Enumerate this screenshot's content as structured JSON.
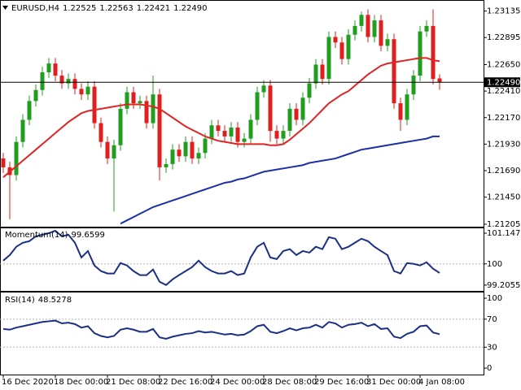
{
  "chart_data": [
    {
      "type": "candlestick",
      "symbol": "EURUSD,H4",
      "last_close_label": "1.22490",
      "categories": [
        "16 Dec 2020",
        null,
        null,
        null,
        null,
        null,
        null,
        null,
        "18 Dec 00:00",
        null,
        null,
        null,
        null,
        null,
        null,
        null,
        "21 Dec 08:00",
        null,
        null,
        null,
        null,
        null,
        null,
        null,
        "22 Dec 16:00",
        null,
        null,
        null,
        null,
        null,
        null,
        null,
        "24 Dec 00:00",
        null,
        null,
        null,
        null,
        null,
        null,
        null,
        "28 Dec 08:00",
        null,
        null,
        null,
        null,
        null,
        null,
        null,
        "29 Dec 16:00",
        null,
        null,
        null,
        null,
        null,
        null,
        null,
        "31 Dec 00:00",
        null,
        null,
        null,
        null,
        null,
        null,
        null,
        "4 Jan 08:00",
        null,
        null,
        null
      ],
      "open": [
        1.218,
        1.2172,
        1.2165,
        1.2195,
        1.2215,
        1.2232,
        1.2242,
        1.2258,
        1.2266,
        1.2255,
        1.2248,
        1.2252,
        1.2243,
        1.2238,
        1.2245,
        1.2212,
        1.2195,
        1.218,
        1.2192,
        1.2225,
        1.224,
        1.223,
        1.2232,
        1.2212,
        1.2238,
        1.2172,
        1.2175,
        1.2188,
        1.2182,
        1.2195,
        1.218,
        1.2185,
        1.2198,
        1.221,
        1.2205,
        1.22,
        1.2208,
        1.2195,
        1.2198,
        1.2215,
        1.224,
        1.2246,
        1.2205,
        1.2198,
        1.2205,
        1.2225,
        1.2215,
        1.2235,
        1.2248,
        1.2265,
        1.2252,
        1.229,
        1.2285,
        1.227,
        1.2292,
        1.23,
        1.231,
        1.229,
        1.2305,
        1.2282,
        1.2288,
        1.223,
        1.2215,
        1.2238,
        1.2255,
        1.2295,
        1.23,
        1.22525
      ],
      "high": [
        1.2185,
        1.2177,
        1.22,
        1.222,
        1.2237,
        1.2247,
        1.2263,
        1.2271,
        1.2271,
        1.226,
        1.2257,
        1.2257,
        1.2248,
        1.225,
        1.225,
        1.2217,
        1.22,
        1.2197,
        1.223,
        1.2245,
        1.2245,
        1.2237,
        1.2237,
        1.2255,
        1.2243,
        1.218,
        1.2193,
        1.2193,
        1.22,
        1.22,
        1.219,
        1.2203,
        1.2215,
        1.2215,
        1.221,
        1.2213,
        1.2213,
        1.2203,
        1.222,
        1.2245,
        1.2251,
        1.2251,
        1.221,
        1.221,
        1.223,
        1.223,
        1.224,
        1.2253,
        1.227,
        1.227,
        1.2295,
        1.2295,
        1.229,
        1.2297,
        1.2305,
        1.2313,
        1.2315,
        1.231,
        1.231,
        1.2293,
        1.2293,
        1.2235,
        1.2243,
        1.226,
        1.23,
        1.2305,
        1.2315,
        1.22563
      ],
      "low": [
        1.2167,
        1.2125,
        1.216,
        1.219,
        1.221,
        1.2227,
        1.2237,
        1.2253,
        1.225,
        1.2243,
        1.2243,
        1.2238,
        1.2233,
        1.2233,
        1.2207,
        1.219,
        1.2175,
        1.2132,
        1.2187,
        1.222,
        1.2225,
        1.2225,
        1.2207,
        1.2207,
        1.216,
        1.2167,
        1.217,
        1.2177,
        1.2177,
        1.2175,
        1.2175,
        1.218,
        1.2193,
        1.22,
        1.2195,
        1.2195,
        1.219,
        1.219,
        1.2193,
        1.221,
        1.2235,
        1.2195,
        1.2193,
        1.2193,
        1.22,
        1.221,
        1.221,
        1.223,
        1.2243,
        1.2247,
        1.2247,
        1.228,
        1.2265,
        1.2265,
        1.2287,
        1.2295,
        1.2285,
        1.2285,
        1.2277,
        1.2277,
        1.2225,
        1.2205,
        1.221,
        1.2233,
        1.225,
        1.229,
        1.2247,
        1.22421
      ],
      "close": [
        1.2172,
        1.2165,
        1.2195,
        1.2215,
        1.2232,
        1.2242,
        1.2258,
        1.2266,
        1.2255,
        1.2248,
        1.2252,
        1.2243,
        1.2238,
        1.2245,
        1.2212,
        1.2195,
        1.218,
        1.2192,
        1.2225,
        1.224,
        1.223,
        1.2232,
        1.2212,
        1.2238,
        1.2172,
        1.2175,
        1.2188,
        1.2182,
        1.2195,
        1.218,
        1.2185,
        1.2198,
        1.221,
        1.2205,
        1.22,
        1.2208,
        1.2195,
        1.2198,
        1.2215,
        1.224,
        1.2246,
        1.2205,
        1.2198,
        1.2205,
        1.2225,
        1.2215,
        1.2235,
        1.2248,
        1.2265,
        1.2252,
        1.229,
        1.2285,
        1.227,
        1.2292,
        1.23,
        1.231,
        1.229,
        1.2305,
        1.2282,
        1.2288,
        1.223,
        1.2215,
        1.2238,
        1.2255,
        1.2295,
        1.23,
        1.2252,
        1.2249
      ],
      "up_color": "#1f9e1f",
      "down_color": "#e01e1e",
      "overlays": [
        {
          "color": "#e02424",
          "values": [
            1.2163,
            1.2168,
            1.2173,
            1.2178,
            1.2183,
            1.2188,
            1.2193,
            1.2198,
            1.2203,
            1.2208,
            1.2213,
            1.2217,
            1.2221,
            1.2223,
            1.2224,
            1.2225,
            1.2226,
            1.2227,
            1.2228,
            1.2229,
            1.2229,
            1.2229,
            1.2228,
            1.2227,
            1.2225,
            1.2221,
            1.2217,
            1.2213,
            1.2209,
            1.2206,
            1.2203,
            1.22,
            1.2198,
            1.2196,
            1.2195,
            1.2194,
            1.2193,
            1.2193,
            1.2193,
            1.2193,
            1.2193,
            1.2192,
            1.2192,
            1.2193,
            1.2197,
            1.2202,
            1.2207,
            1.2212,
            1.2218,
            1.2224,
            1.223,
            1.2234,
            1.2238,
            1.2241,
            1.2246,
            1.2251,
            1.2256,
            1.226,
            1.2264,
            1.2266,
            1.2267,
            1.2268,
            1.2269,
            1.227,
            1.2271,
            1.2271,
            1.2269,
            1.2268
          ]
        },
        {
          "color": "#1c2fa8",
          "values": [
            null,
            null,
            null,
            null,
            null,
            null,
            null,
            null,
            null,
            null,
            null,
            null,
            null,
            null,
            null,
            null,
            null,
            null,
            1.2121,
            1.2124,
            1.2127,
            1.213,
            1.2133,
            1.2136,
            1.2138,
            1.214,
            1.2142,
            1.2144,
            1.2146,
            1.2148,
            1.215,
            1.2152,
            1.2154,
            1.2156,
            1.2158,
            1.2159,
            1.2161,
            1.2162,
            1.2164,
            1.2166,
            1.2168,
            1.2169,
            1.217,
            1.2171,
            1.2172,
            1.2173,
            1.2174,
            1.2176,
            1.2177,
            1.2178,
            1.2179,
            1.218,
            1.2182,
            1.2184,
            1.2186,
            1.2188,
            1.2189,
            1.219,
            1.2191,
            1.2192,
            1.2193,
            1.2194,
            1.2195,
            1.2196,
            1.2197,
            1.2198,
            1.22,
            1.22
          ]
        }
      ],
      "ylim": [
        1.2119,
        1.2322
      ],
      "yticks": [
        1.23135,
        1.22895,
        {
          "value": 1.2265,
          "label": "1.22650"
        },
        {
          "value": 1.2241,
          "label": "1.22410"
        },
        {
          "value": 1.2217,
          "label": "1.22170"
        },
        {
          "value": 1.2193,
          "label": "1.21930"
        },
        {
          "value": 1.2169,
          "label": "1.21690"
        },
        {
          "value": 1.2145,
          "label": "1.21450"
        },
        1.21205
      ],
      "current_price_line": true
    },
    {
      "type": "line",
      "title": "Momentum(14)",
      "color": "#1c2f86",
      "values": [
        100.12,
        100.33,
        100.64,
        100.79,
        100.85,
        101.03,
        101.09,
        101.15,
        101.24,
        101.03,
        101.09,
        100.79,
        100.24,
        100.48,
        99.94,
        99.73,
        99.64,
        99.64,
        100.03,
        99.94,
        99.73,
        99.58,
        99.58,
        99.79,
        99.33,
        99.21,
        99.42,
        99.58,
        99.73,
        99.88,
        100.12,
        99.88,
        99.73,
        99.64,
        99.64,
        99.73,
        99.58,
        99.64,
        100.24,
        100.64,
        100.79,
        100.24,
        100.18,
        100.48,
        100.55,
        100.33,
        100.48,
        100.42,
        100.64,
        100.55,
        101.0,
        100.94,
        100.55,
        100.64,
        100.79,
        100.94,
        100.85,
        100.64,
        100.48,
        100.33,
        99.73,
        99.64,
        100.03,
        100.0,
        99.94,
        100.06,
        99.82,
        99.6599
      ],
      "ylim": [
        99.02,
        101.33
      ],
      "yticks": [
        101.1477,
        100,
        99.2055
      ],
      "levels": [
        100
      ]
    },
    {
      "type": "line",
      "title": "RSI(14)",
      "color": "#1c2f86",
      "values": [
        56,
        55,
        58,
        60,
        62,
        64,
        66,
        67,
        68,
        64,
        65,
        63,
        58,
        60,
        50,
        46,
        44,
        46,
        55,
        57,
        55,
        52,
        52,
        56,
        44,
        42,
        45,
        47,
        49,
        50,
        53,
        51,
        52,
        50,
        48,
        49,
        47,
        48,
        53,
        60,
        62,
        52,
        50,
        53,
        57,
        54,
        57,
        58,
        62,
        58,
        66,
        64,
        58,
        62,
        63,
        65,
        60,
        63,
        56,
        57,
        45,
        43,
        49,
        52,
        60,
        61,
        51,
        48.5278
      ],
      "ylim": [
        -8,
        107
      ],
      "yticks": [
        100,
        70,
        30,
        0
      ],
      "levels": [
        70,
        30
      ]
    }
  ]
}
